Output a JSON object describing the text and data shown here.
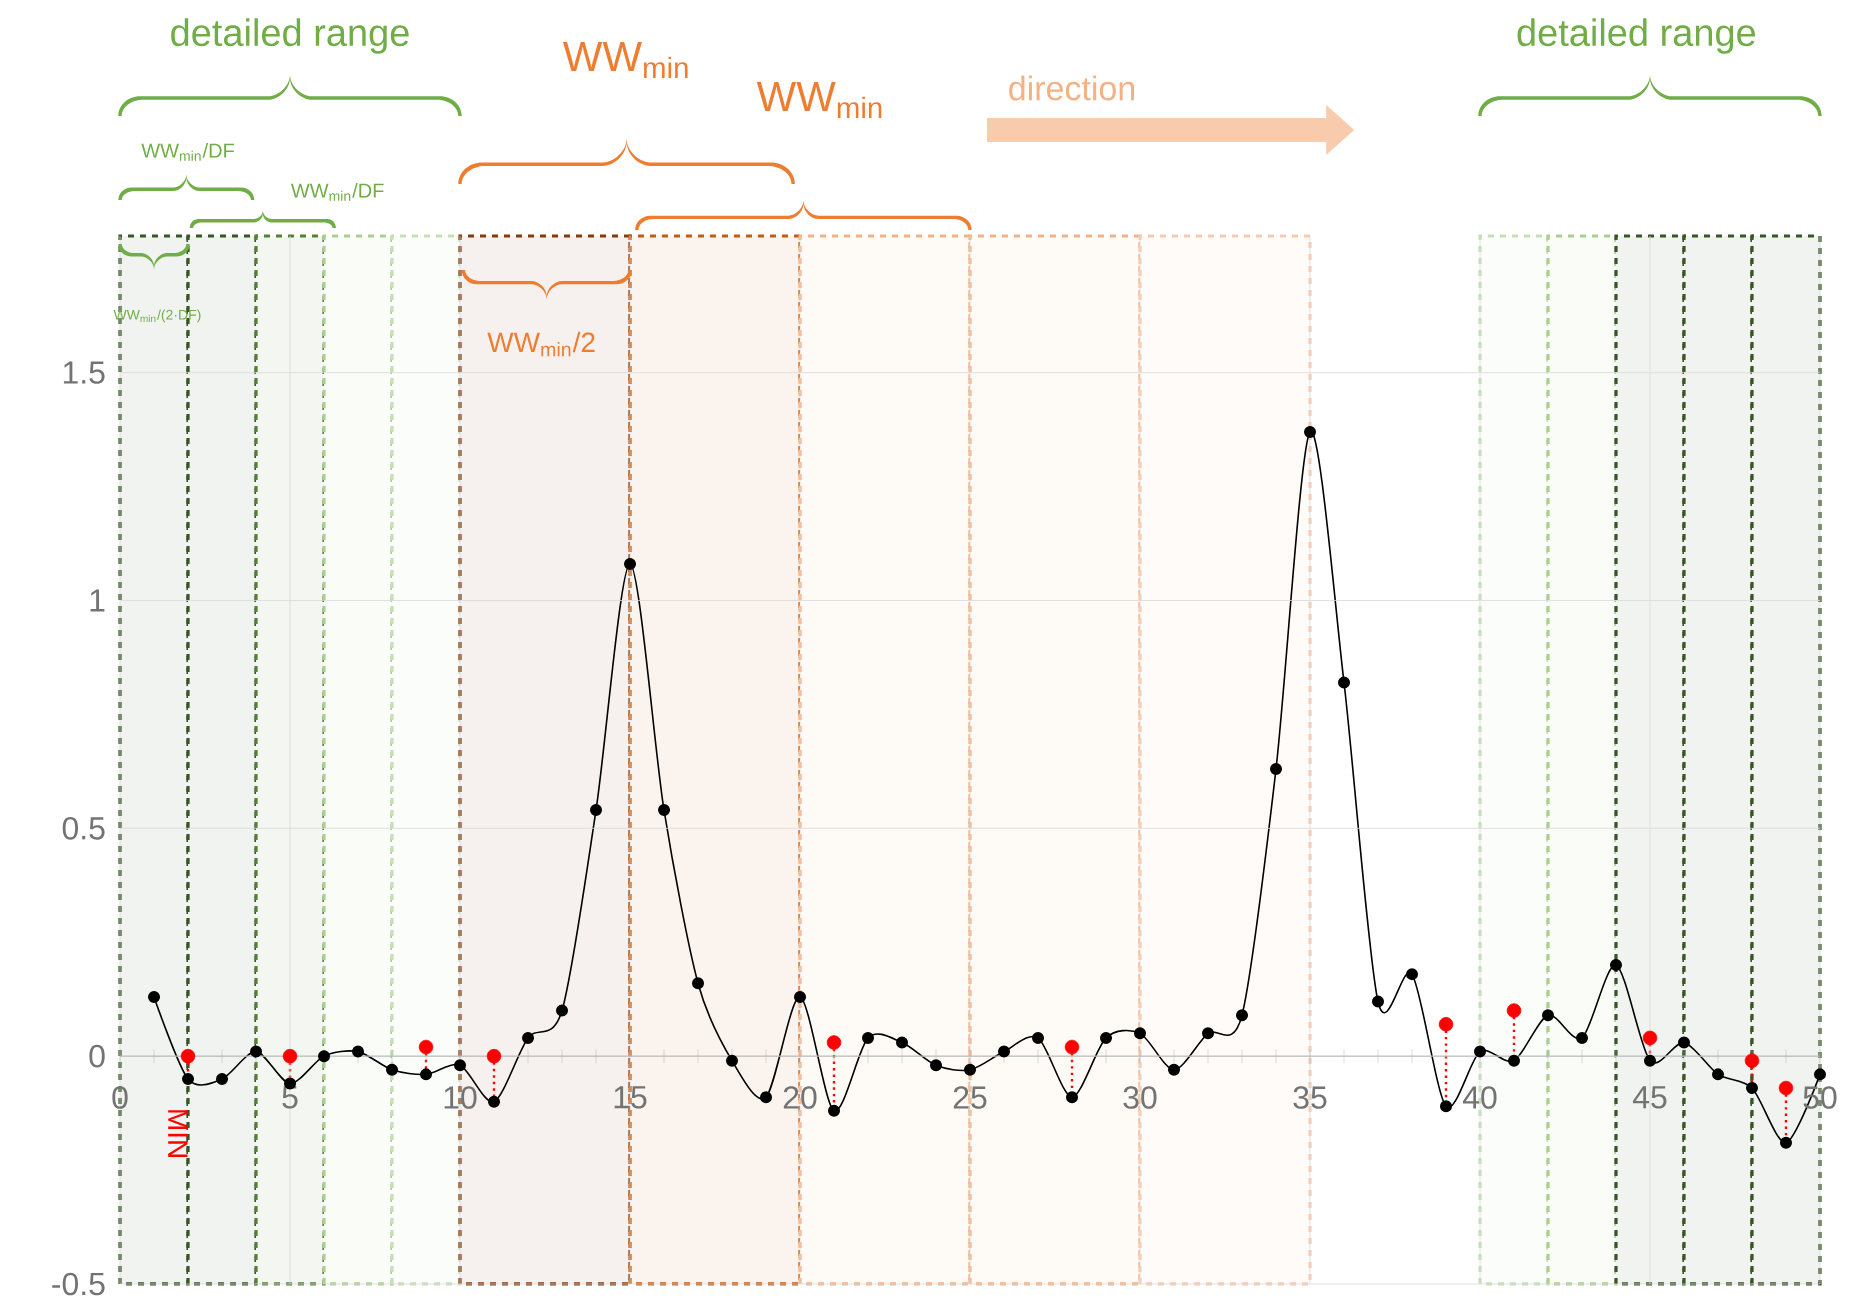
{
  "chart_data": {
    "type": "line",
    "x": [
      1,
      2,
      3,
      4,
      5,
      6,
      7,
      8,
      9,
      10,
      11,
      12,
      13,
      14,
      15,
      16,
      17,
      18,
      19,
      20,
      21,
      22,
      23,
      24,
      25,
      26,
      27,
      28,
      29,
      30,
      31,
      32,
      33,
      34,
      35,
      36,
      37,
      38,
      39,
      40,
      41,
      42,
      43,
      44,
      45,
      46,
      47,
      48,
      49,
      50
    ],
    "series": [
      {
        "color": "#000000",
        "values": [
          0.13,
          -0.05,
          -0.05,
          0.01,
          -0.06,
          0.0,
          0.01,
          -0.03,
          -0.04,
          -0.02,
          -0.1,
          0.04,
          0.1,
          0.54,
          1.08,
          0.54,
          0.16,
          -0.01,
          -0.09,
          0.13,
          -0.12,
          0.04,
          0.03,
          -0.02,
          -0.03,
          0.01,
          0.04,
          -0.09,
          0.04,
          0.05,
          -0.03,
          0.05,
          0.09,
          0.63,
          1.37,
          0.82,
          0.12,
          0.18,
          -0.11,
          0.01,
          -0.01,
          0.09,
          0.04,
          0.2,
          -0.01,
          0.03,
          -0.04,
          -0.07,
          -0.19,
          -0.04
        ]
      },
      {
        "type": "scatter",
        "color": "#ff0000",
        "x": [
          2,
          5,
          9,
          11,
          21,
          28,
          39,
          41,
          45,
          48,
          49
        ],
        "values": [
          0.0,
          0.0,
          0.02,
          0.0,
          0.03,
          0.02,
          0.07,
          0.1,
          0.04,
          -0.01,
          -0.07
        ]
      },
      {
        "type": "line",
        "color": "#ff0000",
        "marker": "none",
        "line_style": "dotted",
        "x": [
          2,
          2
        ],
        "values": [
          0.0,
          -0.05
        ]
      },
      {
        "type": "line",
        "color": "#ff0000",
        "marker": "none",
        "line_style": "dotted",
        "x": [
          5,
          5
        ],
        "values": [
          0.0,
          -0.06
        ]
      },
      {
        "type": "line",
        "color": "#ff0000",
        "marker": "none",
        "line_style": "dotted",
        "x": [
          9,
          9
        ],
        "values": [
          0.02,
          -0.04
        ]
      },
      {
        "type": "line",
        "color": "#ff0000",
        "marker": "none",
        "line_style": "dotted",
        "x": [
          11,
          11
        ],
        "values": [
          0.0,
          -0.1
        ]
      },
      {
        "type": "line",
        "color": "#ff0000",
        "marker": "none",
        "line_style": "dotted",
        "x": [
          21,
          21
        ],
        "values": [
          0.03,
          -0.12
        ]
      },
      {
        "type": "line",
        "color": "#ff0000",
        "marker": "none",
        "line_style": "dotted",
        "x": [
          28,
          28
        ],
        "values": [
          0.02,
          -0.09
        ]
      },
      {
        "type": "line",
        "color": "#ff0000",
        "marker": "none",
        "line_style": "dotted",
        "x": [
          39,
          39
        ],
        "values": [
          0.07,
          -0.11
        ]
      },
      {
        "type": "line",
        "color": "#ff0000",
        "marker": "none",
        "line_style": "dotted",
        "x": [
          41,
          41
        ],
        "values": [
          0.1,
          -0.01
        ]
      },
      {
        "type": "line",
        "color": "#ff0000",
        "marker": "none",
        "line_style": "dotted",
        "x": [
          45,
          45
        ],
        "values": [
          0.04,
          -0.01
        ]
      },
      {
        "type": "line",
        "color": "#ff0000",
        "marker": "none",
        "line_style": "dotted",
        "x": [
          48,
          48
        ],
        "values": [
          -0.01,
          -0.07
        ]
      },
      {
        "type": "line",
        "color": "#ff0000",
        "marker": "none",
        "line_style": "dotted",
        "x": [
          49,
          49
        ],
        "values": [
          -0.07,
          -0.19
        ]
      }
    ],
    "xlim": [
      0,
      50
    ],
    "ylim": [
      -0.5,
      1.8
    ],
    "xticks": [
      0,
      5,
      10,
      15,
      20,
      25,
      30,
      35,
      40,
      45,
      50
    ],
    "yticks": [
      -0.5,
      0,
      0.5,
      1,
      1.5
    ],
    "grid": true,
    "marker": "circle",
    "line_style": "solid",
    "bands": [
      {
        "axis": "x",
        "from": 0,
        "to": 2,
        "color": "#375623"
      },
      {
        "axis": "x",
        "from": 2,
        "to": 4,
        "color": "#375623"
      },
      {
        "axis": "x",
        "from": 4,
        "to": 6,
        "color": "#548235"
      },
      {
        "axis": "x",
        "from": 6,
        "to": 8,
        "color": "#a9d08e"
      },
      {
        "axis": "x",
        "from": 8,
        "to": 10,
        "color": "#c5e0b4"
      },
      {
        "axis": "x",
        "from": 10,
        "to": 15,
        "color": "#843c0c"
      },
      {
        "axis": "x",
        "from": 15,
        "to": 20,
        "color": "#c55a11"
      },
      {
        "axis": "x",
        "from": 20,
        "to": 25,
        "color": "#f4b183"
      },
      {
        "axis": "x",
        "from": 25,
        "to": 30,
        "color": "#f4b183"
      },
      {
        "axis": "x",
        "from": 30,
        "to": 35,
        "color": "#f8cbad"
      },
      {
        "axis": "x",
        "from": 40,
        "to": 42,
        "color": "#c5e0b4"
      },
      {
        "axis": "x",
        "from": 42,
        "to": 44,
        "color": "#a9d08e"
      },
      {
        "axis": "x",
        "from": 44,
        "to": 46,
        "color": "#375623"
      },
      {
        "axis": "x",
        "from": 46,
        "to": 48,
        "color": "#375623"
      },
      {
        "axis": "x",
        "from": 48,
        "to": 50,
        "color": "#375623"
      }
    ],
    "annotations": [
      "detailed range",
      "WW$_{min}$/DF",
      "WW$_{min}$/DF",
      "WW$_{min}$/(2·DF)",
      "WW$_{min}$",
      "WW$_{min}$",
      "WW$_{min}$/2",
      "direction",
      "detailed range",
      "MIN"
    ]
  }
}
